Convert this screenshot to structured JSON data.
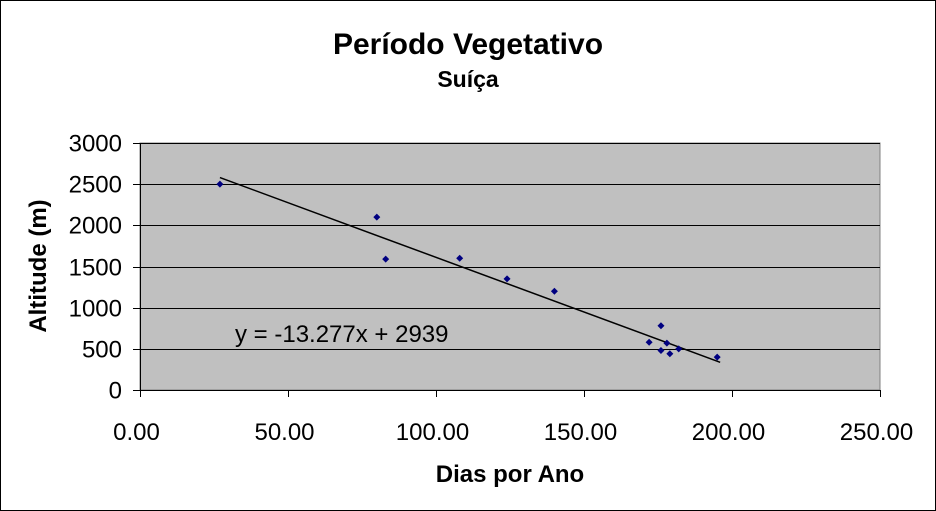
{
  "chart_data": {
    "type": "scatter",
    "title": "Período Vegetativo",
    "subtitle": "Suíça",
    "xlabel": "Dias por Ano",
    "ylabel": "Altitude (m)",
    "xlim": [
      0,
      250
    ],
    "ylim": [
      0,
      3000
    ],
    "xticks": [
      0,
      50,
      100,
      150,
      200,
      250
    ],
    "xtick_labels": [
      "0.00",
      "50.00",
      "100.00",
      "150.00",
      "200.00",
      "250.00"
    ],
    "yticks": [
      0,
      500,
      1000,
      1500,
      2000,
      2500,
      3000
    ],
    "ytick_labels": [
      "0",
      "500",
      "1000",
      "1500",
      "2000",
      "2500",
      "3000"
    ],
    "grid": "horizontal",
    "legend": "none",
    "points": [
      {
        "x": 27,
        "y": 2500
      },
      {
        "x": 80,
        "y": 2100
      },
      {
        "x": 83,
        "y": 1590
      },
      {
        "x": 108,
        "y": 1600
      },
      {
        "x": 124,
        "y": 1350
      },
      {
        "x": 140,
        "y": 1200
      },
      {
        "x": 172,
        "y": 580
      },
      {
        "x": 176,
        "y": 780
      },
      {
        "x": 176,
        "y": 480
      },
      {
        "x": 178,
        "y": 570
      },
      {
        "x": 179,
        "y": 440
      },
      {
        "x": 182,
        "y": 500
      },
      {
        "x": 195,
        "y": 400
      }
    ],
    "trendline": {
      "type": "linear",
      "slope": -13.277,
      "intercept": 2939,
      "x_range": [
        27,
        196
      ],
      "label": "y = -13.277x + 2939"
    }
  },
  "colors": {
    "plot_background": "#C0C0C0",
    "plot_border": "#808080",
    "marker": "#000080",
    "trendline": "#000000",
    "gridline": "#000000",
    "axis": "#000000",
    "frame": "#000000"
  }
}
